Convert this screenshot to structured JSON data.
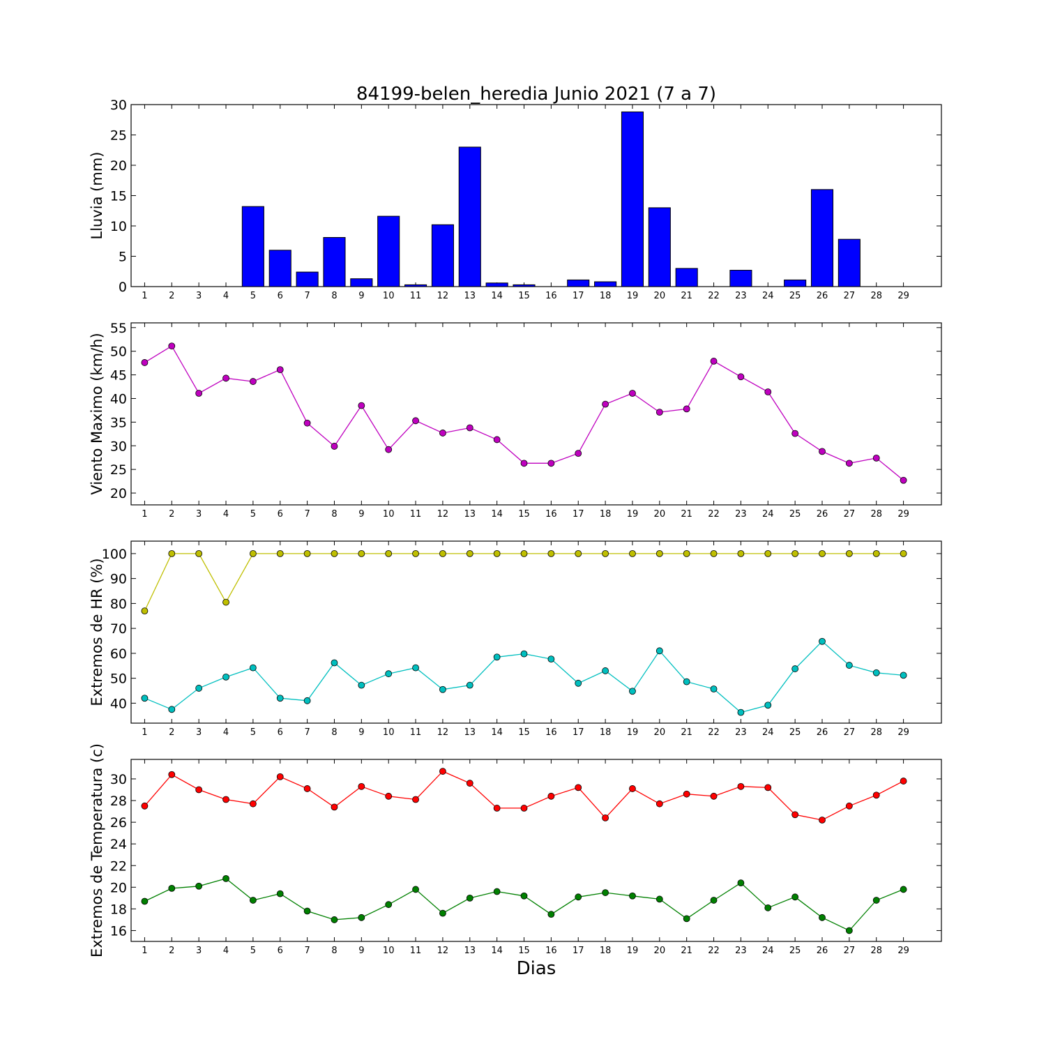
{
  "title": "84199-belen_heredia Junio 2021  (7 a 7)",
  "xlabel": "Dias",
  "days": [
    1,
    2,
    3,
    4,
    5,
    6,
    7,
    8,
    9,
    10,
    11,
    12,
    13,
    14,
    15,
    16,
    17,
    18,
    19,
    20,
    21,
    22,
    23,
    24,
    25,
    26,
    27,
    28,
    29
  ],
  "chart_data": [
    {
      "type": "bar",
      "ylabel": "Lluvia (mm)",
      "ylim": [
        0,
        30
      ],
      "yticks": [
        0,
        5,
        10,
        15,
        20,
        25,
        30
      ],
      "color": "#0000ff",
      "series": [
        {
          "values": [
            0,
            0,
            0,
            0,
            13.2,
            6.0,
            2.4,
            8.1,
            1.3,
            11.6,
            0.3,
            10.2,
            23.0,
            0.6,
            0.3,
            0,
            1.1,
            0.8,
            28.8,
            13.0,
            3.0,
            0,
            2.7,
            0,
            1.1,
            16.0,
            7.8,
            0,
            0
          ]
        }
      ]
    },
    {
      "type": "line",
      "ylabel": "Viento Maximo (km/h)",
      "ylim": [
        17.5,
        56
      ],
      "yticks": [
        20,
        25,
        30,
        35,
        40,
        45,
        50,
        55
      ],
      "series": [
        {
          "color": "#bf00bf",
          "values": [
            47.6,
            51.1,
            41.1,
            44.3,
            43.6,
            46.1,
            34.8,
            29.9,
            38.5,
            29.2,
            35.3,
            32.7,
            33.8,
            31.3,
            26.3,
            26.3,
            28.4,
            38.8,
            41.1,
            37.1,
            37.8,
            47.9,
            44.6,
            41.4,
            32.6,
            28.8,
            26.3,
            27.4,
            22.7
          ]
        }
      ]
    },
    {
      "type": "line",
      "ylabel": "Extremos de HR (%)",
      "ylim": [
        32,
        105
      ],
      "yticks": [
        40,
        50,
        60,
        70,
        80,
        90,
        100
      ],
      "series": [
        {
          "color": "#bfbf00",
          "values": [
            77,
            100,
            100,
            80.5,
            100,
            100,
            100,
            100,
            100,
            100,
            100,
            100,
            100,
            100,
            100,
            100,
            100,
            100,
            100,
            100,
            100,
            100,
            100,
            100,
            100,
            100,
            100,
            100,
            100
          ]
        },
        {
          "color": "#00bfbf",
          "values": [
            42,
            37.5,
            46,
            50.5,
            54.2,
            42,
            41,
            56.2,
            47.2,
            51.8,
            54.2,
            45.5,
            47.2,
            58.5,
            59.8,
            57.7,
            48,
            53,
            44.8,
            61,
            48.6,
            45.7,
            36.3,
            39.2,
            53.8,
            64.8,
            55.2,
            52.2,
            51.2
          ]
        }
      ]
    },
    {
      "type": "line",
      "ylabel": "Extremos de Temperatura (c)",
      "ylim": [
        15,
        31.8
      ],
      "yticks": [
        16,
        18,
        20,
        22,
        24,
        26,
        28,
        30
      ],
      "series": [
        {
          "color": "#ff0000",
          "values": [
            27.5,
            30.4,
            29.0,
            28.1,
            27.7,
            30.2,
            29.1,
            27.4,
            29.3,
            28.4,
            28.1,
            30.7,
            29.6,
            27.3,
            27.3,
            28.4,
            29.2,
            26.4,
            29.1,
            27.7,
            28.6,
            28.4,
            29.3,
            29.2,
            26.7,
            26.2,
            27.5,
            28.5,
            29.8
          ]
        },
        {
          "color": "#008000",
          "values": [
            18.7,
            19.9,
            20.1,
            20.8,
            18.8,
            19.4,
            17.8,
            17.0,
            17.2,
            18.4,
            19.8,
            17.6,
            19.0,
            19.6,
            19.2,
            17.5,
            19.1,
            19.5,
            19.2,
            18.9,
            17.1,
            18.8,
            20.4,
            18.1,
            19.1,
            17.2,
            16.0,
            18.8,
            19.8
          ]
        }
      ]
    }
  ]
}
